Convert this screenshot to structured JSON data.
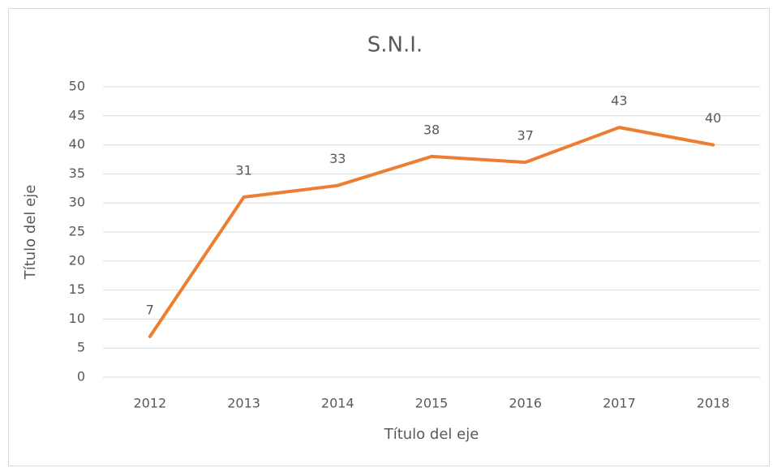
{
  "chart_data": {
    "type": "line",
    "title": "S.N.I.",
    "x_label": "Título del eje",
    "y_label": "Título del eje",
    "categories": [
      "2012",
      "2013",
      "2014",
      "2015",
      "2016",
      "2017",
      "2018"
    ],
    "values": [
      7,
      31,
      33,
      38,
      37,
      43,
      40
    ],
    "color": "#ed7d31",
    "ylim": [
      0,
      50
    ],
    "yticks": [
      0,
      5,
      10,
      15,
      20,
      25,
      30,
      35,
      40,
      45,
      50
    ],
    "grid": true
  }
}
